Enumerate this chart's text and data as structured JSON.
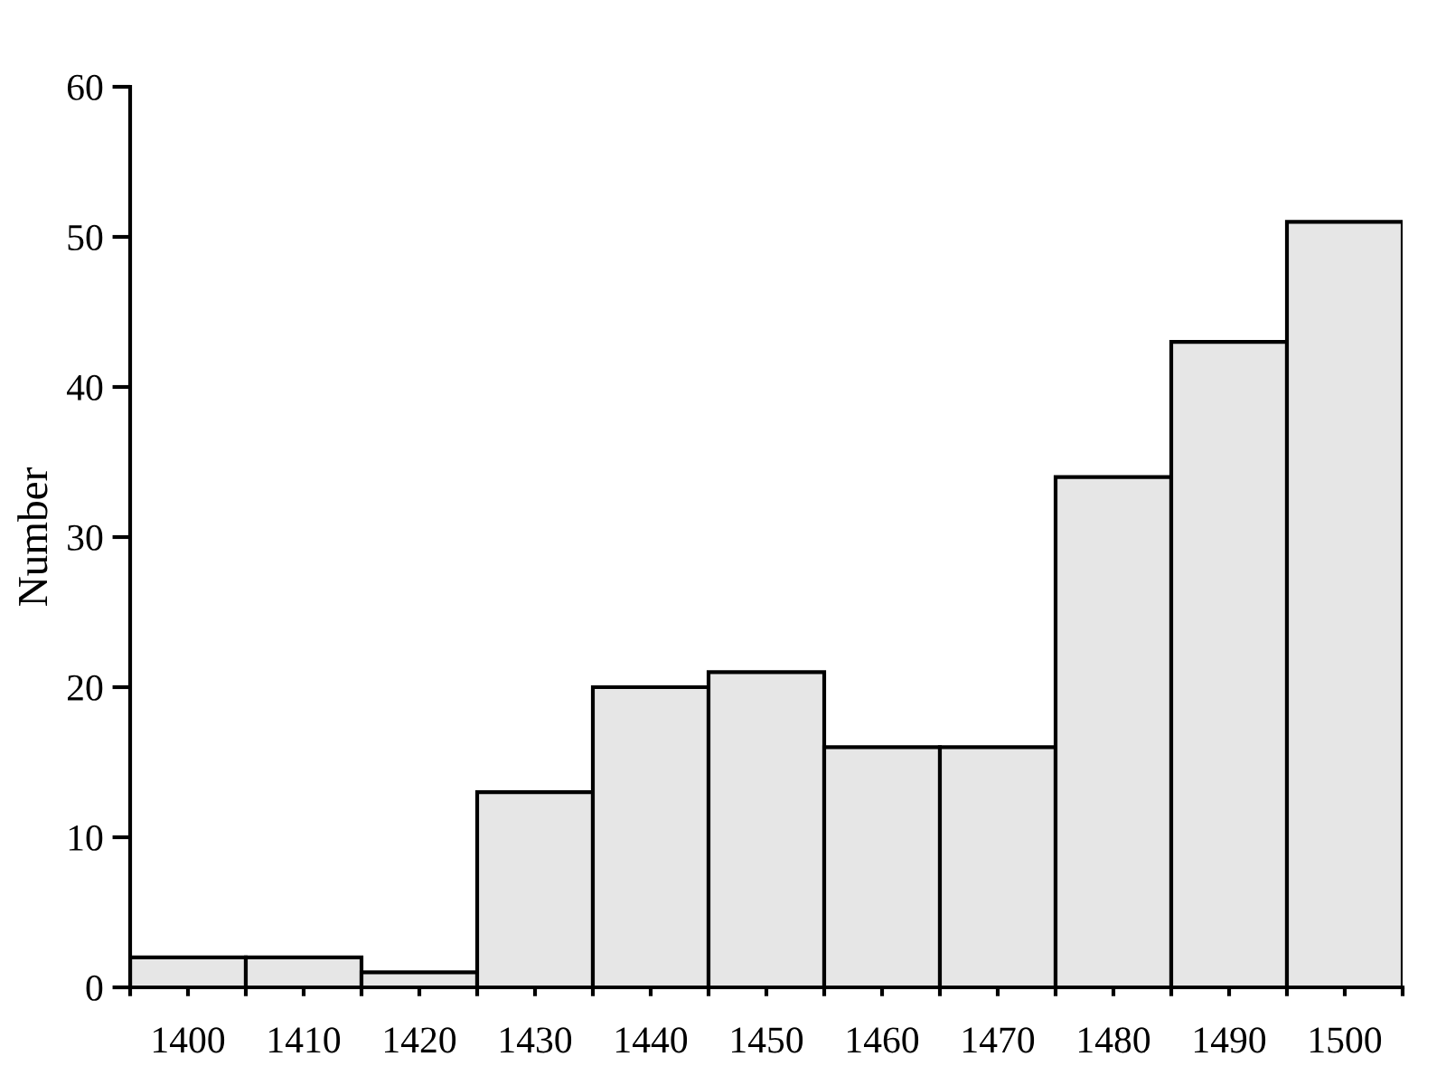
{
  "chart_data": {
    "type": "histogram",
    "ylabel": "Number",
    "bins": [
      1395,
      1405,
      1415,
      1425,
      1435,
      1445,
      1455,
      1465,
      1475,
      1485,
      1495,
      1505
    ],
    "values": [
      2,
      2,
      1,
      13,
      20,
      21,
      16,
      16,
      34,
      43,
      51
    ],
    "color": "#e6e6e6",
    "xlim": [
      1395,
      1505
    ],
    "xticks": [
      {
        "value": 1400,
        "label": "1400"
      },
      {
        "value": 1410,
        "label": "1410"
      },
      {
        "value": 1420,
        "label": "1420"
      },
      {
        "value": 1430,
        "label": "1430"
      },
      {
        "value": 1440,
        "label": "1440"
      },
      {
        "value": 1450,
        "label": "1450"
      },
      {
        "value": 1460,
        "label": "1460"
      },
      {
        "value": 1470,
        "label": "1470"
      },
      {
        "value": 1480,
        "label": "1480"
      },
      {
        "value": 1490,
        "label": "1490"
      },
      {
        "value": 1500,
        "label": "1500"
      },
      {
        "value": 1395,
        "label": null
      },
      {
        "value": 1405,
        "label": null
      },
      {
        "value": 1415,
        "label": null
      },
      {
        "value": 1425,
        "label": null
      },
      {
        "value": 1435,
        "label": null
      },
      {
        "value": 1445,
        "label": null
      },
      {
        "value": 1455,
        "label": null
      },
      {
        "value": 1465,
        "label": null
      },
      {
        "value": 1475,
        "label": null
      },
      {
        "value": 1485,
        "label": null
      },
      {
        "value": 1495,
        "label": null
      },
      {
        "value": 1505,
        "label": null
      }
    ],
    "ylim": [
      0,
      60
    ],
    "yticks": [
      0,
      10,
      20,
      30,
      40,
      50,
      60
    ],
    "grid": false
  }
}
